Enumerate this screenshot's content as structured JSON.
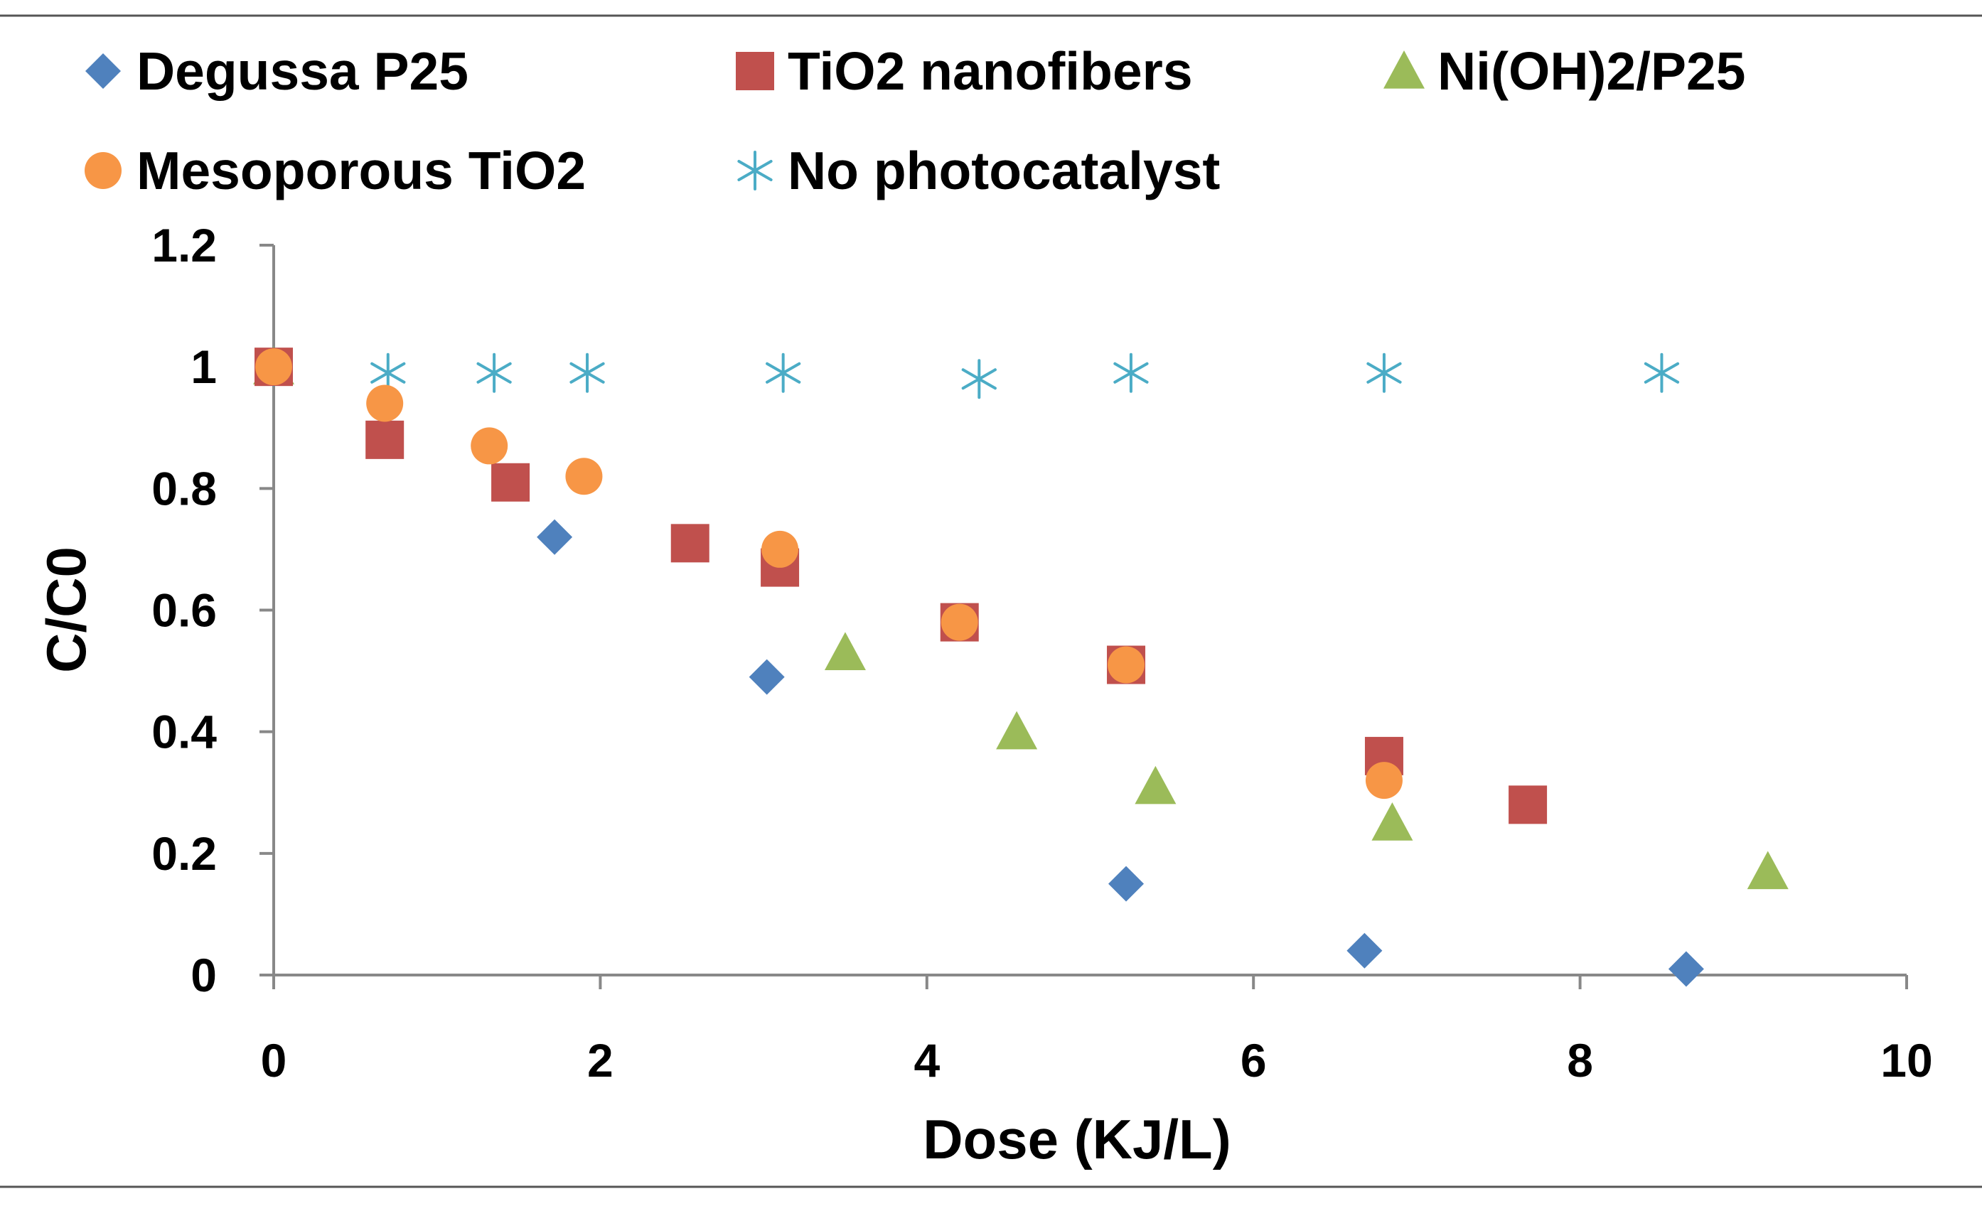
{
  "colors": {
    "degussa": "#4f81bd",
    "nanofibers": "#c0504d",
    "nioh": "#9bbb59",
    "mesoporous": "#f79646",
    "none": "#4bacc6",
    "axis": "#888888",
    "text": "#000000"
  },
  "chart_data": {
    "type": "scatter",
    "title": "",
    "xlabel": "Dose (KJ/L)",
    "ylabel": "C/C0",
    "xlim": [
      0,
      10
    ],
    "ylim": [
      0,
      1.2
    ],
    "x_ticks": [
      0,
      2,
      4,
      6,
      8,
      10
    ],
    "y_ticks": [
      0,
      0.2,
      0.4,
      0.6,
      0.8,
      1,
      1.2
    ],
    "x_tick_labels": [
      "0",
      "2",
      "4",
      "6",
      "8",
      "10"
    ],
    "y_tick_labels": [
      "0",
      "0.2",
      "0.4",
      "0.6",
      "0.8",
      "1",
      "1.2"
    ],
    "grid": false,
    "legend_position": "top",
    "series": [
      {
        "name": "Degussa P25",
        "marker": "diamond",
        "color_key": "degussa",
        "x": [
          0,
          1.72,
          3.02,
          5.22,
          6.68,
          8.65
        ],
        "y": [
          1.0,
          0.72,
          0.49,
          0.15,
          0.04,
          0.01
        ]
      },
      {
        "name": "TiO2 nanofibers",
        "marker": "square",
        "color_key": "nanofibers",
        "x": [
          0,
          0.68,
          1.45,
          2.55,
          3.1,
          4.2,
          5.22,
          6.8,
          7.68
        ],
        "y": [
          1.0,
          0.88,
          0.81,
          0.71,
          0.67,
          0.58,
          0.51,
          0.36,
          0.28
        ]
      },
      {
        "name": "Ni(OH)2/P25",
        "marker": "triangle",
        "color_key": "nioh",
        "x": [
          0,
          3.5,
          4.55,
          5.4,
          6.85,
          9.15
        ],
        "y": [
          1.0,
          0.53,
          0.4,
          0.31,
          0.25,
          0.17
        ]
      },
      {
        "name": "Mesoporous TiO2",
        "marker": "circle",
        "color_key": "mesoporous",
        "x": [
          0,
          0.68,
          1.32,
          1.9,
          3.1,
          4.2,
          5.22,
          6.8
        ],
        "y": [
          1.0,
          0.94,
          0.87,
          0.82,
          0.7,
          0.58,
          0.51,
          0.32
        ]
      },
      {
        "name": "No photocatalyst",
        "marker": "asterisk",
        "color_key": "none",
        "x": [
          0,
          0.7,
          1.35,
          1.92,
          3.12,
          4.32,
          5.25,
          6.8,
          8.5
        ],
        "y": [
          1.0,
          0.99,
          0.99,
          0.99,
          0.99,
          0.98,
          0.99,
          0.99,
          0.99
        ]
      }
    ]
  }
}
